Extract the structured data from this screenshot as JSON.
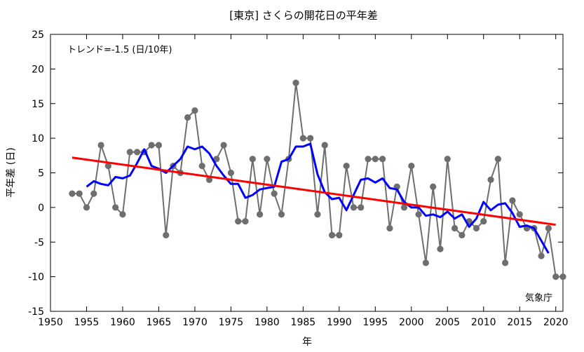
{
  "chart_data": {
    "type": "line",
    "title": "[東京] さくらの開花日の平年差",
    "xlabel": "年",
    "ylabel": "平年差 (日)",
    "annotation": "トレンド=-1.5 (日/10年)",
    "source": "気象庁",
    "xlim": [
      1950,
      2021
    ],
    "ylim": [
      -15,
      25
    ],
    "xticks": [
      1950,
      1955,
      1960,
      1965,
      1970,
      1975,
      1980,
      1985,
      1990,
      1995,
      2000,
      2005,
      2010,
      2015,
      2020
    ],
    "yticks": [
      -15,
      -10,
      -5,
      0,
      5,
      10,
      15,
      20,
      25
    ],
    "grid": false,
    "colors": {
      "annual": "#6e6e6e",
      "moving_avg": "#0000ff",
      "trend": "#ff0000"
    },
    "series": [
      {
        "style": "line+markers",
        "x": [
          1953,
          1954,
          1955,
          1956,
          1957,
          1958,
          1959,
          1960,
          1961,
          1962,
          1963,
          1964,
          1965,
          1966,
          1967,
          1968,
          1969,
          1970,
          1971,
          1972,
          1973,
          1974,
          1975,
          1976,
          1977,
          1978,
          1979,
          1980,
          1981,
          1982,
          1983,
          1984,
          1985,
          1986,
          1987,
          1988,
          1989,
          1990,
          1991,
          1992,
          1993,
          1994,
          1995,
          1996,
          1997,
          1998,
          1999,
          2000,
          2001,
          2002,
          2003,
          2004,
          2005,
          2006,
          2007,
          2008,
          2009,
          2010,
          2011,
          2012,
          2013,
          2014,
          2015,
          2016,
          2017,
          2018,
          2019,
          2020,
          2021
        ],
        "y": [
          2,
          2,
          0,
          2,
          9,
          6,
          0,
          -1,
          8,
          8,
          8,
          9,
          9,
          -4,
          6,
          5,
          13,
          14,
          6,
          4,
          7,
          9,
          5,
          -2,
          -2,
          7,
          -1,
          7,
          2,
          -1,
          7,
          18,
          10,
          10,
          -1,
          9,
          -4,
          -4,
          6,
          0,
          0,
          7,
          7,
          7,
          -3,
          3,
          0,
          6,
          -1,
          -8,
          3,
          -6,
          7,
          -3,
          -4,
          -2,
          -3,
          -2,
          4,
          7,
          -8,
          1,
          -1,
          -3,
          -3,
          -7,
          -3,
          -10,
          -10
        ]
      },
      {
        "style": "line",
        "x": [
          1955,
          1956,
          1957,
          1958,
          1959,
          1960,
          1961,
          1962,
          1963,
          1964,
          1965,
          1966,
          1967,
          1968,
          1969,
          1970,
          1971,
          1972,
          1973,
          1974,
          1975,
          1976,
          1977,
          1978,
          1979,
          1980,
          1981,
          1982,
          1983,
          1984,
          1985,
          1986,
          1987,
          1988,
          1989,
          1990,
          1991,
          1992,
          1993,
          1994,
          1995,
          1996,
          1997,
          1998,
          1999,
          2000,
          2001,
          2002,
          2003,
          2004,
          2005,
          2006,
          2007,
          2008,
          2009,
          2010,
          2011,
          2012,
          2013,
          2014,
          2015,
          2016,
          2017,
          2018,
          2019
        ],
        "y": [
          3,
          3.8,
          3.4,
          3.2,
          4.4,
          4.2,
          4.6,
          6.4,
          8.4,
          6,
          5.6,
          5,
          6,
          7,
          8.8,
          8.4,
          8.8,
          7.8,
          6,
          4.6,
          3.4,
          3.4,
          1.4,
          1.8,
          2.6,
          2.8,
          3,
          6.6,
          7,
          8.8,
          8.8,
          9.2,
          4.8,
          2.2,
          1.2,
          1.4,
          -0.4,
          1.8,
          4,
          4.2,
          3.6,
          4.2,
          2.8,
          2.6,
          0.8,
          0,
          0,
          -1.2,
          -1,
          -1.4,
          -0.6,
          -1.6,
          -1,
          -2.8,
          -1.6,
          0.8,
          -0.4,
          0.4,
          0.6,
          -0.8,
          -2.8,
          -2.6,
          -3,
          -4.8,
          -6.6
        ]
      },
      {
        "style": "trend",
        "x": [
          1953,
          2020
        ],
        "y": [
          7.2,
          -2.5
        ]
      }
    ]
  }
}
